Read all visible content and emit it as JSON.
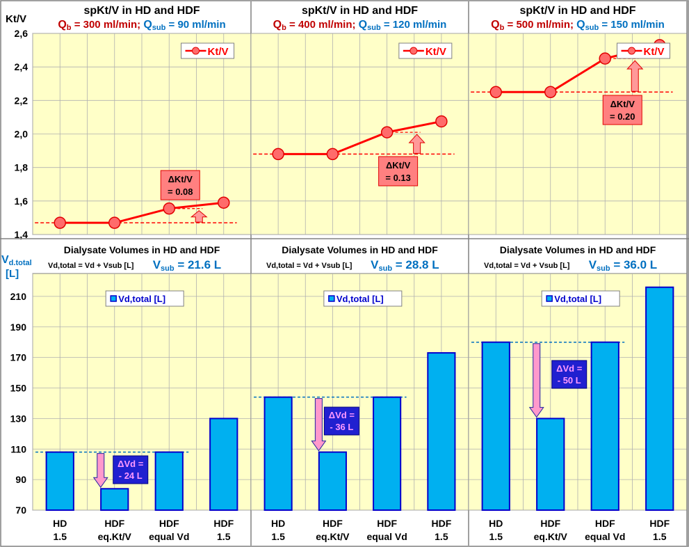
{
  "colors": {
    "background": "#ffffff",
    "plot_area": "#ffffc8",
    "ktv_series": "#ff0000",
    "bar_fill": "#00b0f0",
    "bar_edge": "#0000cc",
    "reference_line": "#0070c0",
    "delta_ktv_box": "#ff8080",
    "delta_vd_box": "#2020d0",
    "qb_text": "#c00000",
    "qsub_text": "#0070c0",
    "vsub_text": "#0070c0"
  },
  "shared_axes": {
    "top_ylabel": "Kt/V",
    "bottom_ylabel_main": "V",
    "bottom_ylabel_sub": "d.total",
    "bottom_ylabel_unit": "[L]"
  },
  "panels": [
    {
      "top": {
        "title": "spKt/V in HD and  HDF",
        "q_text_b": "Q",
        "q_sub_b": "b",
        "q_b_value": " = 300 ml/min; ",
        "q_text_s": "Q",
        "q_sub_s": "sub",
        "q_s_value": " = 90 ml/min",
        "legend": "Kt/V",
        "delta_line1": "ΔKt/V",
        "delta_line2": "= 0.08"
      },
      "bottom": {
        "title": "Dialysate Volumes in HD and HDF",
        "formula": "Vd,total = Vd + Vsub [L]",
        "vsub_main": "V",
        "vsub_sub": "sub",
        "vsub_value": " = 21.6 L",
        "legend": "Vd,total [L]",
        "delta_line1": "ΔVd =",
        "delta_line2": "- 24 L"
      }
    },
    {
      "top": {
        "title": "spKt/V in HD and HDF",
        "q_text_b": "Q",
        "q_sub_b": "b",
        "q_b_value": " = 400 ml/min; ",
        "q_text_s": "Q",
        "q_sub_s": "sub",
        "q_s_value": " = 120 ml/min",
        "legend": "Kt/V",
        "delta_line1": "ΔKt/V",
        "delta_line2": "= 0.13"
      },
      "bottom": {
        "title": "Dialysate Volumes in HD and HDF",
        "formula": "Vd,total = Vd + Vsub [L]",
        "vsub_main": "V",
        "vsub_sub": "sub",
        "vsub_value": " = 28.8 L",
        "legend": "Vd,total [L]",
        "delta_line1": "ΔVd =",
        "delta_line2": "- 36 L"
      }
    },
    {
      "top": {
        "title": "spKt/V in HD and HDF",
        "q_text_b": "Q",
        "q_sub_b": "b",
        "q_b_value": " = 500 ml/min; ",
        "q_text_s": "Q",
        "q_sub_s": "sub",
        "q_s_value": " = 150 ml/min",
        "legend": "Kt/V",
        "delta_line1": "ΔKt/V",
        "delta_line2": "= 0.20"
      },
      "bottom": {
        "title": "Dialysate Volumes in HD and HDF",
        "formula": "Vd,total = Vd + Vsub [L]",
        "vsub_main": "V",
        "vsub_sub": "sub",
        "vsub_value": " = 36.0 L",
        "legend": "Vd,total [L]",
        "delta_line1": "ΔVd =",
        "delta_line2": "- 50 L"
      }
    }
  ],
  "chart_data": [
    {
      "type": "line",
      "panel": 1,
      "title": "spKt/V in HD and  HDF",
      "ylabel": "Kt/V",
      "ylim": [
        1.4,
        2.6
      ],
      "yticks": [
        "1,4",
        "1,6",
        "1,8",
        "2,0",
        "2,2",
        "2,4",
        "2,6"
      ],
      "series": [
        {
          "name": "Kt/V",
          "values": [
            1.47,
            1.47,
            1.555,
            1.59
          ]
        }
      ],
      "reference_value": 1.47,
      "delta_reference": 1.555,
      "grid": true,
      "legend_position": "top-right"
    },
    {
      "type": "line",
      "panel": 2,
      "title": "spKt/V in HD and HDF",
      "ylim": [
        1.4,
        2.6
      ],
      "series": [
        {
          "name": "Kt/V",
          "values": [
            1.88,
            1.88,
            2.01,
            2.075
          ]
        }
      ],
      "reference_value": 1.88,
      "delta_reference": 2.01,
      "grid": true,
      "legend_position": "top-right"
    },
    {
      "type": "line",
      "panel": 3,
      "title": "spKt/V in HD and HDF",
      "ylim": [
        1.4,
        2.6
      ],
      "series": [
        {
          "name": "Kt/V",
          "values": [
            2.25,
            2.25,
            2.45,
            2.53
          ]
        }
      ],
      "reference_value": 2.25,
      "delta_reference": 2.45,
      "grid": true,
      "legend_position": "top-right"
    },
    {
      "type": "bar",
      "panel": 1,
      "title": "Dialysate Volumes in HD and HDF",
      "ylabel": "Vd.total [L]",
      "ylim": [
        70,
        225
      ],
      "yticks": [
        "70",
        "90",
        "110",
        "130",
        "150",
        "170",
        "190",
        "210"
      ],
      "categories": [
        [
          "HD",
          "1.5"
        ],
        [
          "HDF",
          "eq.Kt/V"
        ],
        [
          "HDF",
          "equal Vd"
        ],
        [
          "HDF",
          "1.5"
        ]
      ],
      "series": [
        {
          "name": "Vd,total [L]",
          "values": [
            108,
            84,
            108,
            130
          ]
        }
      ],
      "reference_value": 108,
      "grid": true,
      "legend_position": "top-center"
    },
    {
      "type": "bar",
      "panel": 2,
      "title": "Dialysate Volumes in HD and HDF",
      "ylim": [
        70,
        225
      ],
      "categories": [
        [
          "HD",
          "1.5"
        ],
        [
          "HDF",
          "eq.Kt/V"
        ],
        [
          "HDF",
          "equal Vd"
        ],
        [
          "HDF",
          "1.5"
        ]
      ],
      "series": [
        {
          "name": "Vd,total [L]",
          "values": [
            144,
            108,
            144,
            173
          ]
        }
      ],
      "reference_value": 144,
      "grid": true,
      "legend_position": "top-center"
    },
    {
      "type": "bar",
      "panel": 3,
      "title": "Dialysate Volumes in HD and HDF",
      "ylim": [
        70,
        225
      ],
      "categories": [
        [
          "HD",
          "1.5"
        ],
        [
          "HDF",
          "eq.Kt/V"
        ],
        [
          "HDF",
          "equal Vd"
        ],
        [
          "HDF",
          "1.5"
        ]
      ],
      "series": [
        {
          "name": "Vd,total [L]",
          "values": [
            180,
            130,
            180,
            216
          ]
        }
      ],
      "reference_value": 180,
      "grid": true,
      "legend_position": "top-center"
    }
  ]
}
